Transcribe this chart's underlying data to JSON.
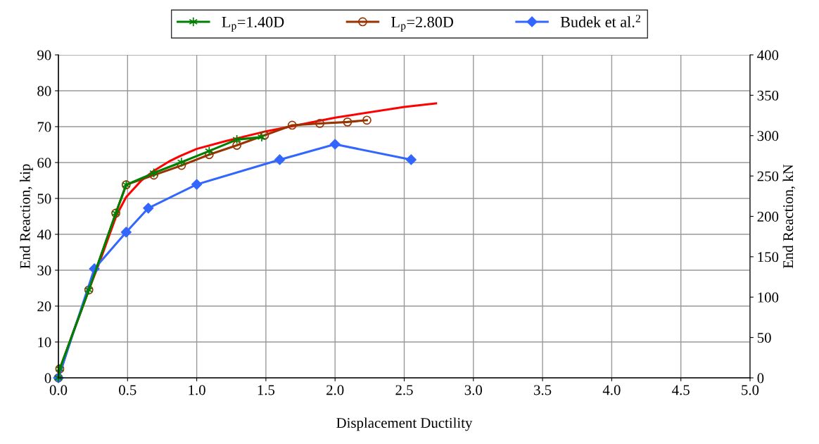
{
  "chart_data": {
    "type": "line",
    "xlabel": "Displacement Ductility",
    "ylabel": "End Reaction, kip",
    "y2label": "End Reaction, kN",
    "xlim": [
      0,
      5
    ],
    "xticks": [
      {
        "value": 0,
        "label": "0.0"
      },
      {
        "value": 0.5,
        "label": "0.5"
      },
      {
        "value": 1,
        "label": "1.0"
      },
      {
        "value": 1.5,
        "label": "1.5"
      },
      {
        "value": 2,
        "label": "2.0"
      },
      {
        "value": 2.5,
        "label": "2.5"
      },
      {
        "value": 3,
        "label": "3.0"
      },
      {
        "value": 3.5,
        "label": "3.5"
      },
      {
        "value": 4,
        "label": "4.0"
      },
      {
        "value": 4.5,
        "label": "4.5"
      },
      {
        "value": 5,
        "label": "5.0"
      }
    ],
    "ylim": [
      0,
      90
    ],
    "yticks": [
      0,
      10,
      20,
      30,
      40,
      50,
      60,
      70,
      80,
      90
    ],
    "y2lim": [
      0,
      400
    ],
    "y2ticks": [
      0,
      50,
      100,
      150,
      200,
      250,
      300,
      350,
      400
    ],
    "grid": true,
    "legend": "top",
    "series": [
      {
        "color": "#ff0000",
        "marker": "none",
        "x": [
          0,
          0.1,
          0.22,
          0.3,
          0.42,
          0.49,
          0.6,
          0.69,
          0.8,
          0.89,
          1.0,
          1.2,
          1.5,
          2.0,
          2.5,
          2.73
        ],
        "values": [
          0,
          12,
          24.5,
          32.5,
          45.3,
          50.4,
          55,
          57.7,
          60.3,
          62,
          63.8,
          65.9,
          68.7,
          72.5,
          75.5,
          76.5
        ]
      },
      {
        "name": "L$_{p}$=1.40D",
        "color": "#008000",
        "marker": "cross",
        "x": [
          0,
          0.01,
          0.22,
          0.415,
          0.49,
          0.69,
          0.89,
          1.09,
          1.29,
          1.47
        ],
        "values": [
          0,
          2.5,
          24.5,
          45.9,
          53.8,
          57.1,
          60.1,
          63.2,
          66.4,
          67.1
        ]
      },
      {
        "name": "L$_{p}$=2.80D",
        "color": "#993300",
        "marker": "circle",
        "x": [
          0,
          0.01,
          0.22,
          0.415,
          0.49,
          0.69,
          0.89,
          1.09,
          1.29,
          1.49,
          1.69,
          1.89,
          2.09,
          2.23
        ],
        "values": [
          0,
          2.5,
          24.5,
          45.9,
          53.8,
          56.5,
          59.2,
          62.2,
          64.8,
          67.6,
          70.4,
          70.9,
          71.3,
          71.8
        ]
      },
      {
        "name": "Budek et al.$^{2}$",
        "color": "#3366ff",
        "marker": "diamond",
        "x": [
          0,
          0.26,
          0.49,
          0.65,
          1.0,
          1.6,
          2.0,
          2.55
        ],
        "values": [
          0,
          30.4,
          40.6,
          47.3,
          53.9,
          60.8,
          65.1,
          60.8
        ]
      }
    ]
  }
}
